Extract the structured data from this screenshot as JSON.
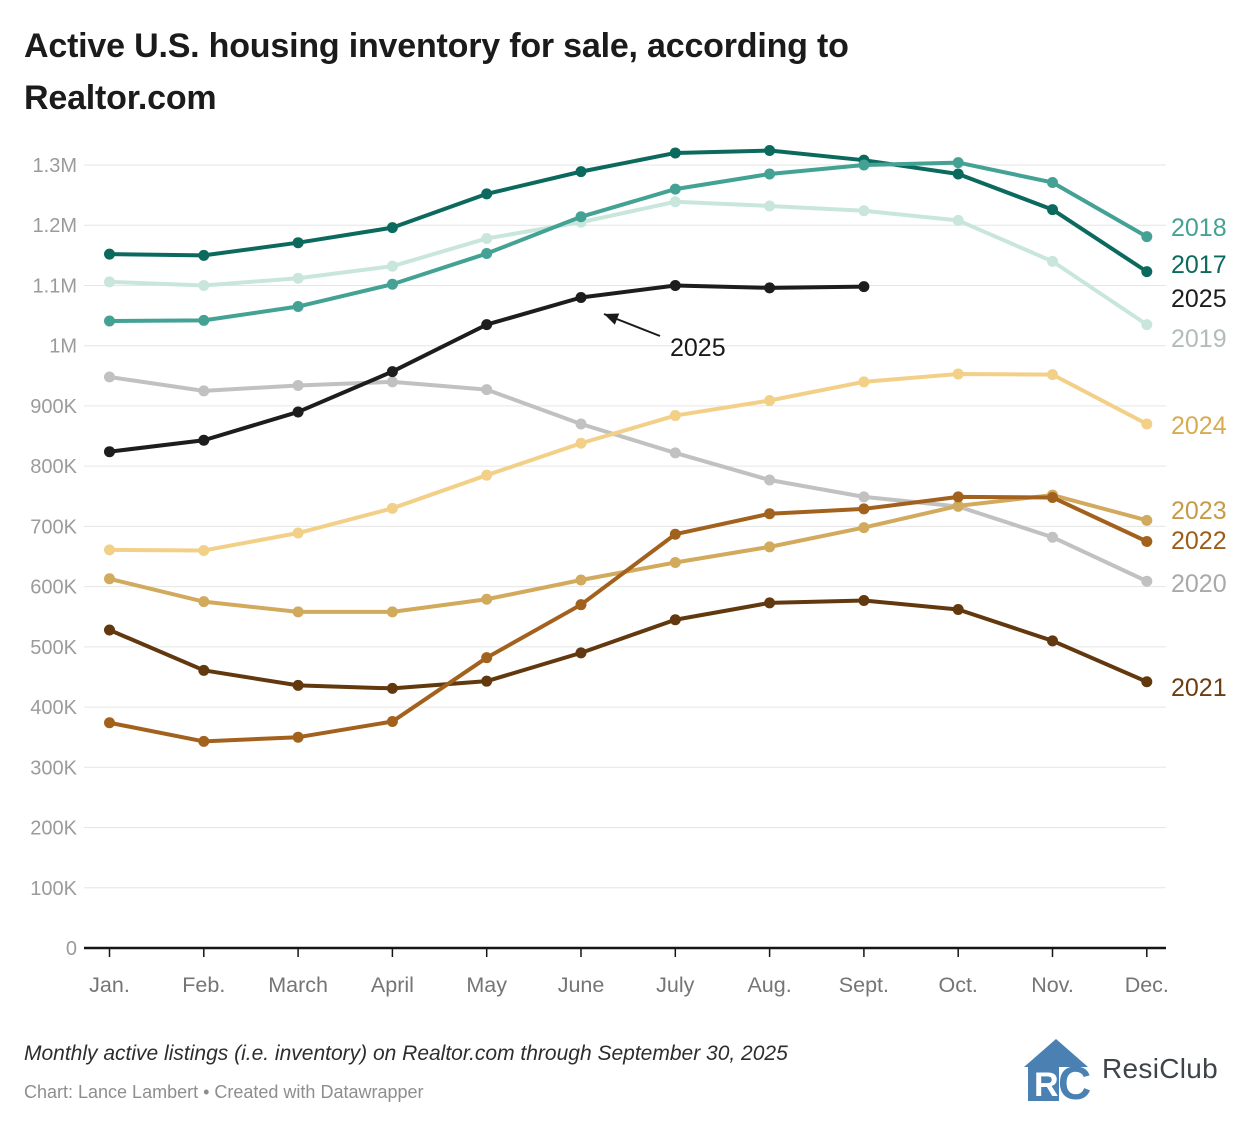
{
  "header": {
    "title_line1": "Active U.S. housing inventory for sale, according to",
    "title_line2": "Realtor.com"
  },
  "footer": {
    "note": "Monthly active listings (i.e. inventory) on Realtor.com through September 30, 2025",
    "credit": "Chart: Lance Lambert • Created with Datawrapper",
    "logo_text": "ResiClub",
    "logo_blue": "#4a80b2"
  },
  "chart_data": {
    "type": "line",
    "title": "Active U.S. housing inventory for sale, according to Realtor.com",
    "x_categories": [
      "Jan.",
      "Feb.",
      "March",
      "April",
      "May",
      "June",
      "July",
      "Aug.",
      "Sept.",
      "Oct.",
      "Nov.",
      "Dec."
    ],
    "values_unit": "thousands of active listings (e.g. 1152 = 1.152M)",
    "ylim": [
      0,
      1360
    ],
    "grid": true,
    "legend_position": "right-edge-labels",
    "y_ticks": [
      {
        "label": "0",
        "value": 0
      },
      {
        "label": "100K",
        "value": 100
      },
      {
        "label": "200K",
        "value": 200
      },
      {
        "label": "300K",
        "value": 300
      },
      {
        "label": "400K",
        "value": 400
      },
      {
        "label": "500K",
        "value": 500
      },
      {
        "label": "600K",
        "value": 600
      },
      {
        "label": "700K",
        "value": 700
      },
      {
        "label": "800K",
        "value": 800
      },
      {
        "label": "900K",
        "value": 900
      },
      {
        "label": "1M",
        "value": 1000
      },
      {
        "label": "1.1M",
        "value": 1100
      },
      {
        "label": "1.2M",
        "value": 1200
      },
      {
        "label": "1.3M",
        "value": 1300
      }
    ],
    "annotation": {
      "text": "2025",
      "text_x": 670,
      "text_y": 356,
      "arrow_from": [
        660,
        336
      ],
      "arrow_to": [
        604,
        314
      ]
    },
    "draw_order": [
      "2019",
      "2017",
      "2018",
      "2020",
      "2024",
      "2023",
      "2021",
      "2022",
      "2025"
    ],
    "series": [
      {
        "name": "2017",
        "color": "#0b6a5d",
        "label_color": "#0b6a5d",
        "label_y": 264,
        "values": [
          1152,
          1150,
          1171,
          1196,
          1252,
          1289,
          1320,
          1324,
          1308,
          1285,
          1226,
          1123
        ]
      },
      {
        "name": "2018",
        "color": "#43a294",
        "label_color": "#43a294",
        "label_y": 227,
        "values": [
          1041,
          1042,
          1065,
          1102,
          1153,
          1214,
          1260,
          1285,
          1300,
          1304,
          1271,
          1181
        ]
      },
      {
        "name": "2019",
        "color": "#c9e6dc",
        "label_color": "#b3bcb8",
        "label_y": 338,
        "values": [
          1106,
          1100,
          1112,
          1132,
          1178,
          1205,
          1239,
          1232,
          1224,
          1208,
          1140,
          1035
        ]
      },
      {
        "name": "2020",
        "color": "#c1c1c1",
        "label_color": "#a9a9a9",
        "label_y": 583,
        "values": [
          948,
          925,
          934,
          940,
          927,
          870,
          822,
          777,
          749,
          733,
          682,
          609
        ]
      },
      {
        "name": "2021",
        "color": "#62380f",
        "label_color": "#6b3e12",
        "label_y": 687,
        "values": [
          528,
          461,
          436,
          431,
          443,
          490,
          545,
          573,
          577,
          562,
          510,
          442
        ]
      },
      {
        "name": "2022",
        "color": "#a2611c",
        "label_color": "#9c5d1b",
        "label_y": 540,
        "values": [
          374,
          343,
          350,
          376,
          482,
          570,
          687,
          721,
          729,
          749,
          748,
          675
        ]
      },
      {
        "name": "2023",
        "color": "#d2aa5e",
        "label_color": "#c59b4a",
        "label_y": 510,
        "values": [
          613,
          575,
          558,
          558,
          579,
          611,
          640,
          666,
          698,
          734,
          752,
          710
        ]
      },
      {
        "name": "2024",
        "color": "#f2d088",
        "label_color": "#d8ab4f",
        "label_y": 425,
        "values": [
          661,
          660,
          689,
          730,
          785,
          838,
          884,
          909,
          940,
          953,
          952,
          870
        ]
      },
      {
        "name": "2025",
        "color": "#1d1d1d",
        "label_color": "#1d1d1d",
        "label_y": 298,
        "values": [
          824,
          843,
          890,
          957,
          1035,
          1080,
          1100,
          1096,
          1098
        ]
      }
    ]
  }
}
